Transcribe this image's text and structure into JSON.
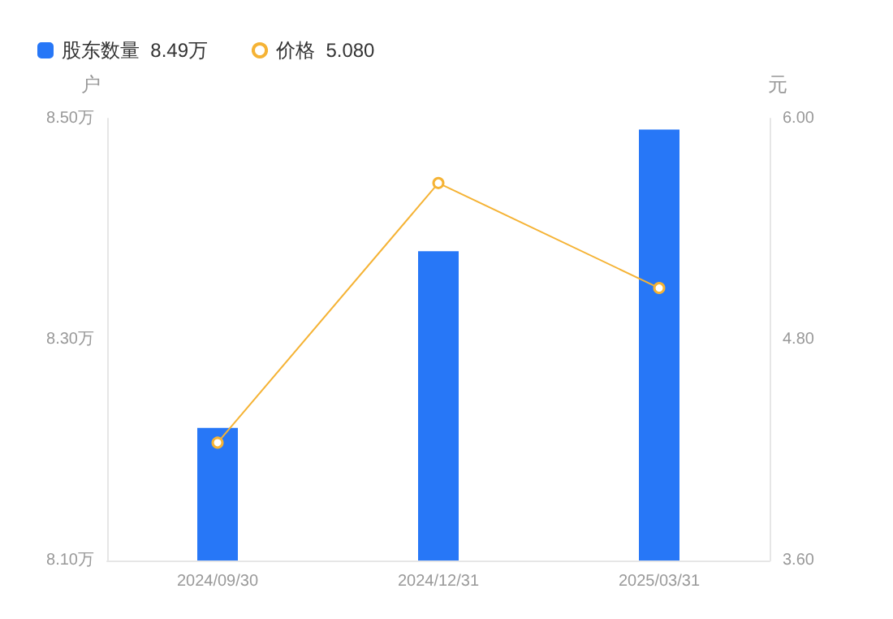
{
  "chart_data": {
    "type": "bar",
    "categories": [
      "2024/09/30",
      "2024/12/31",
      "2025/03/31"
    ],
    "series": [
      {
        "name": "股东数量  8.49万",
        "color": "#2777f7",
        "values": [
          8.22,
          8.38,
          8.49
        ]
      },
      {
        "name": "价格  5.080",
        "type": "line",
        "axis": "y2",
        "color": "#f5b335",
        "values": [
          4.24,
          5.65,
          5.08
        ]
      }
    ],
    "ylabel": "户",
    "y2label": "元",
    "ylim": [
      8.1,
      8.5
    ],
    "yticks": [
      {
        "value": 8.1,
        "label": "8.10万"
      },
      {
        "value": 8.3,
        "label": "8.30万"
      },
      {
        "value": 8.5,
        "label": "8.50万"
      }
    ],
    "y2lim": [
      3.6,
      6
    ],
    "y2ticks": [
      {
        "value": 3.6,
        "label": "3.60"
      },
      {
        "value": 4.8,
        "label": "4.80"
      },
      {
        "value": 6,
        "label": "6.00"
      }
    ],
    "legend": "top left",
    "marker": "circle",
    "line_style": "solid",
    "grid": false
  }
}
